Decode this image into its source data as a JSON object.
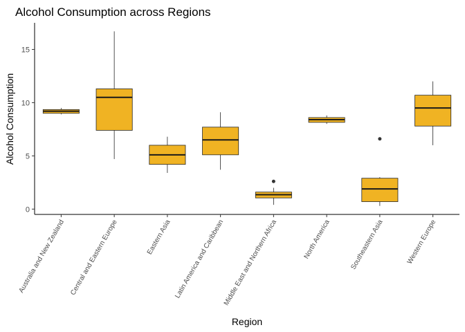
{
  "chart_data": {
    "type": "boxplot",
    "title": "Alcohol Consumption across Regions",
    "xlabel": "Region",
    "ylabel": "Alcohol Consumption",
    "ylim": [
      -0.5,
      17.5
    ],
    "yticks": [
      0,
      5,
      10,
      15
    ],
    "grid": false,
    "box_color": "#F0B323",
    "outline_color": "#262626",
    "categories": [
      "Australia and New Zealand",
      "Central and Eastern Europe",
      "Eastern Asia",
      "Latin America and Caribbean",
      "Middle East and Northern Africa",
      "North America",
      "Southeastern Asia",
      "Western Europe"
    ],
    "series": [
      {
        "min": 8.9,
        "q1": 9.0,
        "median": 9.2,
        "q3": 9.35,
        "max": 9.5,
        "outliers": []
      },
      {
        "min": 4.7,
        "q1": 7.4,
        "median": 10.5,
        "q3": 11.3,
        "max": 16.7,
        "outliers": []
      },
      {
        "min": 3.4,
        "q1": 4.2,
        "median": 5.1,
        "q3": 6.0,
        "max": 6.8,
        "outliers": []
      },
      {
        "min": 3.7,
        "q1": 5.1,
        "median": 6.5,
        "q3": 7.7,
        "max": 9.1,
        "outliers": []
      },
      {
        "min": 0.4,
        "q1": 1.05,
        "median": 1.35,
        "q3": 1.6,
        "max": 2.0,
        "outliers": [
          2.6
        ]
      },
      {
        "min": 8.0,
        "q1": 8.15,
        "median": 8.4,
        "q3": 8.6,
        "max": 8.8,
        "outliers": []
      },
      {
        "min": 0.3,
        "q1": 0.7,
        "median": 1.9,
        "q3": 2.9,
        "max": 3.0,
        "outliers": [
          6.6
        ]
      },
      {
        "min": 6.0,
        "q1": 7.8,
        "median": 9.5,
        "q3": 10.7,
        "max": 12.0,
        "outliers": []
      }
    ]
  }
}
